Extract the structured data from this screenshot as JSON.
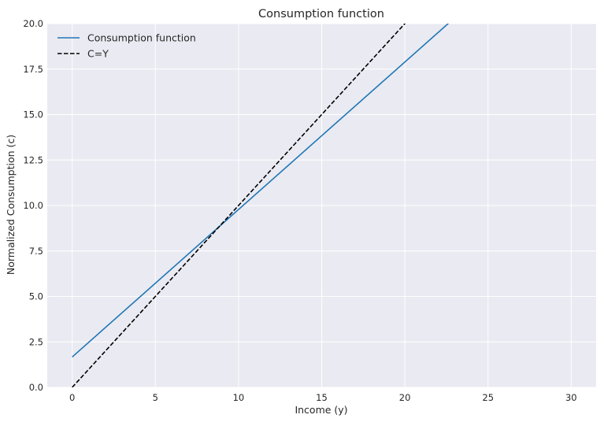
{
  "chart_data": {
    "type": "line",
    "title": "Consumption function",
    "xlabel": "Income (y)",
    "ylabel": "Normalized Consumption (c)",
    "xlim": [
      -1.5,
      31.5
    ],
    "ylim": [
      0,
      20
    ],
    "xticks": [
      0,
      5,
      10,
      15,
      20,
      25,
      30
    ],
    "xtick_labels": [
      "0",
      "5",
      "10",
      "15",
      "20",
      "25",
      "30"
    ],
    "yticks": [
      0,
      2.5,
      5,
      7.5,
      10,
      12.5,
      15,
      17.5,
      20
    ],
    "ytick_labels": [
      "0.0",
      "2.5",
      "5.0",
      "7.5",
      "10.0",
      "12.5",
      "15.0",
      "17.5",
      "20.0"
    ],
    "grid": true,
    "legend_position": "top-left",
    "series": [
      {
        "name": "Consumption function",
        "color": "#1f77b4",
        "style": "solid",
        "x": [
          0,
          30
        ],
        "y": [
          1.67,
          26.0
        ]
      },
      {
        "name": "C=Y",
        "color": "#000000",
        "style": "dashed",
        "x": [
          0,
          30
        ],
        "y": [
          0,
          30
        ]
      }
    ]
  }
}
